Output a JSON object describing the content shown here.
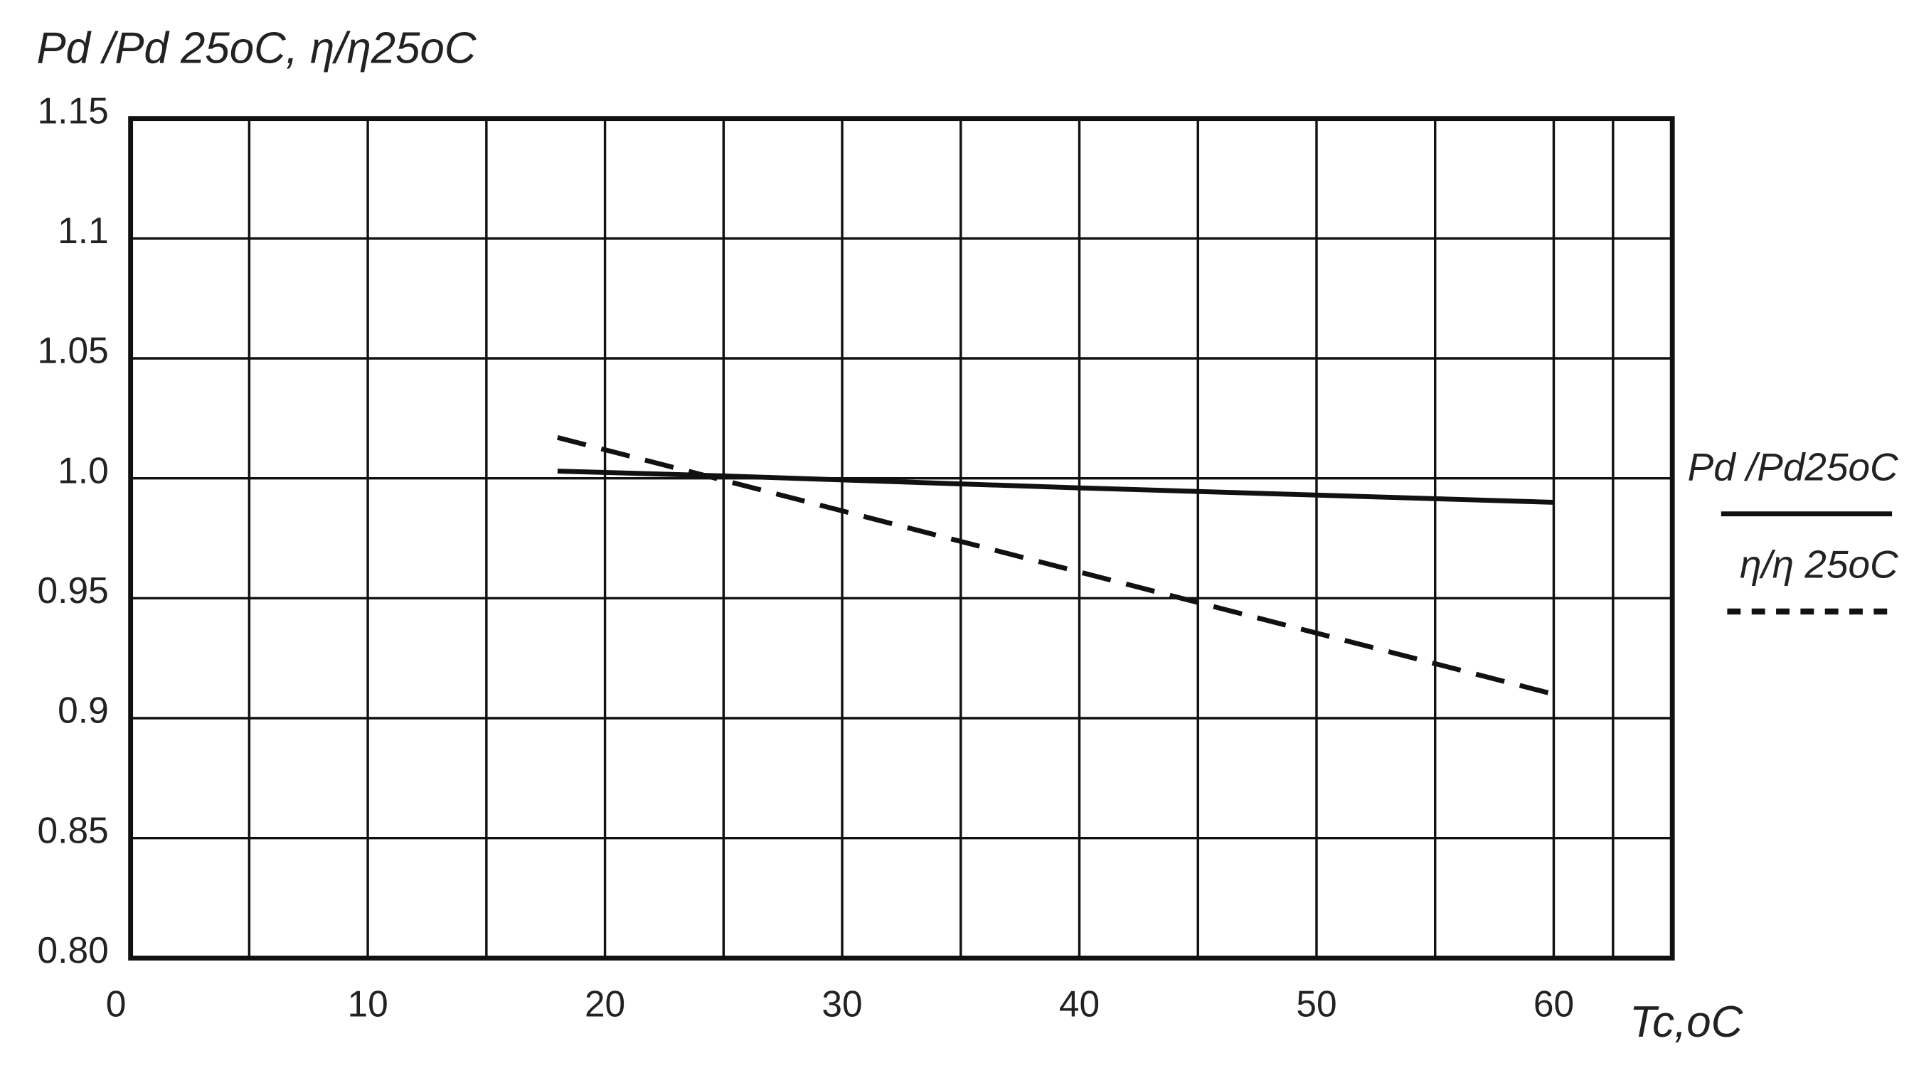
{
  "chart_data": {
    "type": "line",
    "y_label": "Pd /Pd 25oC, η/η25oC",
    "x_label": "Tc,oC",
    "xlim": [
      0,
      65
    ],
    "xticks": [
      0,
      10,
      20,
      30,
      40,
      50,
      60
    ],
    "ylim": [
      0.8,
      1.15
    ],
    "yticks": [
      {
        "value": 0.8,
        "label": "0.80"
      },
      0.85,
      0.9,
      0.95,
      {
        "value": 1.0,
        "label": "1.0"
      },
      1.05,
      1.1,
      1.15
    ],
    "grid": true,
    "legend": "right",
    "series": [
      {
        "name": "Pd /Pd25oC",
        "color": "#111111",
        "dash": "solid",
        "x": [
          18,
          25,
          40,
          60
        ],
        "values": [
          1.003,
          1.001,
          0.996,
          0.99
        ]
      },
      {
        "name": "η/η 25oC",
        "color": "#111111",
        "dash": "dashed",
        "x": [
          18,
          60
        ],
        "values": [
          1.017,
          0.91
        ]
      }
    ]
  }
}
